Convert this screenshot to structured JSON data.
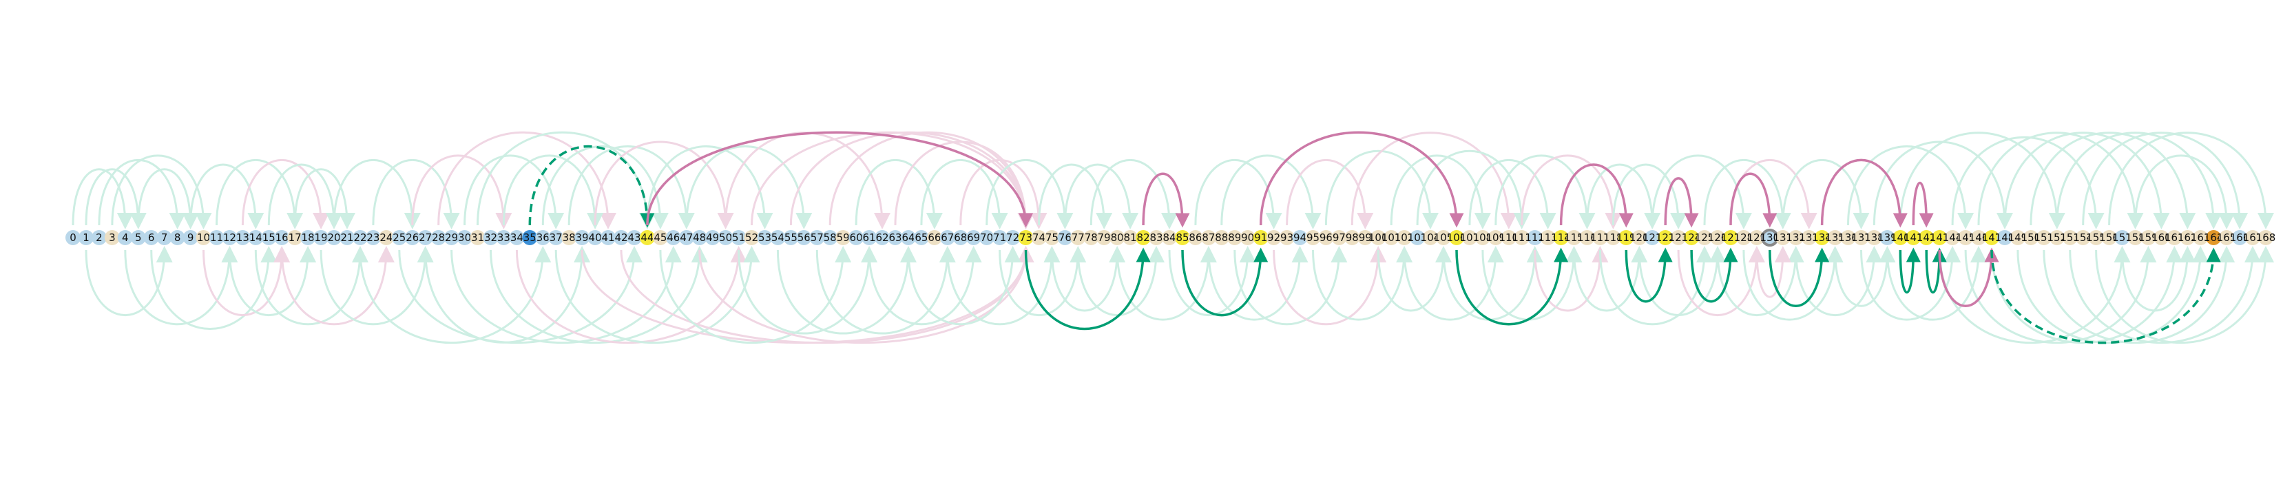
{
  "diagram": {
    "type": "arc-diagram",
    "node_count": 169,
    "labels": [
      "0",
      "1",
      "2",
      "3",
      "4",
      "5",
      "6",
      "7",
      "8",
      "9",
      "10",
      "11",
      "12",
      "13",
      "14",
      "15",
      "16",
      "17",
      "18",
      "19",
      "20",
      "21",
      "22",
      "23",
      "24",
      "25",
      "26",
      "27",
      "28",
      "29",
      "30",
      "31",
      "32",
      "33",
      "34",
      "35",
      "36",
      "37",
      "38",
      "39",
      "40",
      "41",
      "42",
      "43",
      "44",
      "45",
      "46",
      "47",
      "48",
      "49",
      "50",
      "51",
      "52",
      "53",
      "54",
      "55",
      "56",
      "57",
      "58",
      "59",
      "60",
      "61",
      "62",
      "63",
      "64",
      "65",
      "66",
      "67",
      "68",
      "69",
      "70",
      "71",
      "72",
      "73",
      "74",
      "75",
      "76",
      "77",
      "78",
      "79",
      "80",
      "81",
      "82",
      "83",
      "84",
      "85",
      "86",
      "87",
      "88",
      "89",
      "90",
      "91",
      "92",
      "93",
      "94",
      "95",
      "96",
      "97",
      "98",
      "99",
      "100",
      "101",
      "102",
      "103",
      "104",
      "105",
      "106",
      "107",
      "108",
      "109",
      "110",
      "111",
      "112",
      "113",
      "114",
      "115",
      "116",
      "117",
      "118",
      "119",
      "120",
      "121",
      "122",
      "123",
      "124",
      "125",
      "126",
      "127",
      "128",
      "129",
      "130",
      "131",
      "132",
      "133",
      "134",
      "135",
      "136",
      "137",
      "138",
      "139",
      "140",
      "141",
      "142",
      "143",
      "144",
      "145",
      "146",
      "147",
      "148",
      "149",
      "150",
      "151",
      "152",
      "153",
      "154",
      "155",
      "156",
      "157",
      "158",
      "159",
      "160",
      "161",
      "162",
      "163",
      "164",
      "165",
      "166",
      "167",
      "168"
    ],
    "colors": {
      "node_blue": "#b9d7ea",
      "node_beige": "#ede0c4",
      "node_yellow": "#f5ea3a",
      "node_highlight_blue": "#3b8fd6",
      "node_orange": "#e2982a",
      "ring_gray": "#8a8a8a",
      "green_faint": "#cdeee3",
      "pink_faint": "#f0d6e3",
      "green_strong": "#009e73",
      "pink_strong": "#cc79a7"
    },
    "nodes": {
      "yellow": [
        44,
        73,
        82,
        85,
        91,
        106,
        114,
        119,
        122,
        124,
        127,
        134,
        140,
        141,
        142,
        143,
        147
      ],
      "highlight_blue": [
        35
      ],
      "orange": [
        164
      ],
      "ring": [
        130
      ]
    },
    "strong_edges": [
      {
        "from": 35,
        "to": 44,
        "color": "green",
        "side": "up",
        "dashed": true
      },
      {
        "from": 44,
        "to": 73,
        "color": "pink",
        "side": "up",
        "dashed": false
      },
      {
        "from": 82,
        "to": 85,
        "color": "pink",
        "side": "up",
        "dashed": false
      },
      {
        "from": 91,
        "to": 106,
        "color": "pink",
        "side": "up",
        "dashed": false
      },
      {
        "from": 114,
        "to": 119,
        "color": "pink",
        "side": "up",
        "dashed": false
      },
      {
        "from": 122,
        "to": 124,
        "color": "pink",
        "side": "up",
        "dashed": false
      },
      {
        "from": 127,
        "to": 130,
        "color": "pink",
        "side": "up",
        "dashed": false
      },
      {
        "from": 134,
        "to": 140,
        "color": "pink",
        "side": "up",
        "dashed": false
      },
      {
        "from": 141,
        "to": 142,
        "color": "pink",
        "side": "up",
        "dashed": false
      },
      {
        "from": 73,
        "to": 82,
        "color": "green",
        "side": "down",
        "dashed": false
      },
      {
        "from": 85,
        "to": 91,
        "color": "green",
        "side": "down",
        "dashed": false
      },
      {
        "from": 106,
        "to": 114,
        "color": "green",
        "side": "down",
        "dashed": false
      },
      {
        "from": 119,
        "to": 122,
        "color": "green",
        "side": "down",
        "dashed": false
      },
      {
        "from": 124,
        "to": 127,
        "color": "green",
        "side": "down",
        "dashed": false
      },
      {
        "from": 130,
        "to": 134,
        "color": "green",
        "side": "down",
        "dashed": false
      },
      {
        "from": 140,
        "to": 141,
        "color": "green",
        "side": "down",
        "dashed": false
      },
      {
        "from": 142,
        "to": 143,
        "color": "green",
        "side": "down",
        "dashed": false
      },
      {
        "from": 143,
        "to": 147,
        "color": "pink",
        "side": "down",
        "dashed": false
      },
      {
        "from": 147,
        "to": 164,
        "color": "green",
        "side": "down",
        "dashed": true
      }
    ],
    "faint_edges": [
      {
        "from": 0,
        "to": 4,
        "color": "green",
        "side": "up"
      },
      {
        "from": 1,
        "to": 5,
        "color": "green",
        "side": "up"
      },
      {
        "from": 2,
        "to": 8,
        "color": "green",
        "side": "up"
      },
      {
        "from": 3,
        "to": 10,
        "color": "green",
        "side": "up"
      },
      {
        "from": 5,
        "to": 9,
        "color": "green",
        "side": "up"
      },
      {
        "from": 9,
        "to": 14,
        "color": "green",
        "side": "up"
      },
      {
        "from": 11,
        "to": 17,
        "color": "green",
        "side": "up"
      },
      {
        "from": 13,
        "to": 19,
        "color": "pink",
        "side": "up"
      },
      {
        "from": 15,
        "to": 20,
        "color": "green",
        "side": "up"
      },
      {
        "from": 17,
        "to": 21,
        "color": "green",
        "side": "up"
      },
      {
        "from": 20,
        "to": 26,
        "color": "green",
        "side": "up"
      },
      {
        "from": 23,
        "to": 29,
        "color": "green",
        "side": "up"
      },
      {
        "from": 26,
        "to": 33,
        "color": "pink",
        "side": "up"
      },
      {
        "from": 28,
        "to": 41,
        "color": "pink",
        "side": "up"
      },
      {
        "from": 30,
        "to": 37,
        "color": "green",
        "side": "up"
      },
      {
        "from": 31,
        "to": 44,
        "color": "green",
        "side": "up"
      },
      {
        "from": 33,
        "to": 40,
        "color": "green",
        "side": "up"
      },
      {
        "from": 36,
        "to": 45,
        "color": "green",
        "side": "up"
      },
      {
        "from": 38,
        "to": 47,
        "color": "green",
        "side": "up"
      },
      {
        "from": 40,
        "to": 50,
        "color": "pink",
        "side": "up"
      },
      {
        "from": 44,
        "to": 53,
        "color": "green",
        "side": "up"
      },
      {
        "from": 47,
        "to": 56,
        "color": "green",
        "side": "up"
      },
      {
        "from": 50,
        "to": 62,
        "color": "pink",
        "side": "up"
      },
      {
        "from": 52,
        "to": 73,
        "color": "pink",
        "side": "up"
      },
      {
        "from": 55,
        "to": 73,
        "color": "pink",
        "side": "up"
      },
      {
        "from": 58,
        "to": 73,
        "color": "pink",
        "side": "up"
      },
      {
        "from": 60,
        "to": 66,
        "color": "green",
        "side": "up"
      },
      {
        "from": 63,
        "to": 73,
        "color": "pink",
        "side": "up"
      },
      {
        "from": 65,
        "to": 71,
        "color": "green",
        "side": "up"
      },
      {
        "from": 68,
        "to": 74,
        "color": "pink",
        "side": "up"
      },
      {
        "from": 70,
        "to": 76,
        "color": "green",
        "side": "up"
      },
      {
        "from": 74,
        "to": 79,
        "color": "green",
        "side": "up"
      },
      {
        "from": 76,
        "to": 81,
        "color": "green",
        "side": "up"
      },
      {
        "from": 78,
        "to": 84,
        "color": "green",
        "side": "up"
      },
      {
        "from": 86,
        "to": 92,
        "color": "green",
        "side": "up"
      },
      {
        "from": 88,
        "to": 95,
        "color": "green",
        "side": "up"
      },
      {
        "from": 93,
        "to": 99,
        "color": "pink",
        "side": "up"
      },
      {
        "from": 96,
        "to": 104,
        "color": "green",
        "side": "up"
      },
      {
        "from": 98,
        "to": 110,
        "color": "pink",
        "side": "up"
      },
      {
        "from": 101,
        "to": 108,
        "color": "green",
        "side": "up"
      },
      {
        "from": 103,
        "to": 111,
        "color": "green",
        "side": "up"
      },
      {
        "from": 107,
        "to": 113,
        "color": "green",
        "side": "up"
      },
      {
        "from": 109,
        "to": 116,
        "color": "green",
        "side": "up"
      },
      {
        "from": 111,
        "to": 118,
        "color": "pink",
        "side": "up"
      },
      {
        "from": 116,
        "to": 121,
        "color": "green",
        "side": "up"
      },
      {
        "from": 118,
        "to": 123,
        "color": "green",
        "side": "up"
      },
      {
        "from": 121,
        "to": 128,
        "color": "green",
        "side": "up"
      },
      {
        "from": 125,
        "to": 131,
        "color": "green",
        "side": "up"
      },
      {
        "from": 127,
        "to": 133,
        "color": "pink",
        "side": "up"
      },
      {
        "from": 131,
        "to": 137,
        "color": "green",
        "side": "up"
      },
      {
        "from": 136,
        "to": 145,
        "color": "green",
        "side": "up"
      },
      {
        "from": 138,
        "to": 148,
        "color": "green",
        "side": "up"
      },
      {
        "from": 140,
        "to": 152,
        "color": "green",
        "side": "up"
      },
      {
        "from": 144,
        "to": 155,
        "color": "green",
        "side": "up"
      },
      {
        "from": 146,
        "to": 158,
        "color": "green",
        "side": "up"
      },
      {
        "from": 148,
        "to": 160,
        "color": "green",
        "side": "up"
      },
      {
        "from": 150,
        "to": 162,
        "color": "green",
        "side": "up"
      },
      {
        "from": 152,
        "to": 164,
        "color": "green",
        "side": "up"
      },
      {
        "from": 154,
        "to": 166,
        "color": "green",
        "side": "up"
      },
      {
        "from": 156,
        "to": 168,
        "color": "green",
        "side": "up"
      },
      {
        "from": 158,
        "to": 165,
        "color": "green",
        "side": "up"
      },
      {
        "from": 1,
        "to": 7,
        "color": "green",
        "side": "down"
      },
      {
        "from": 4,
        "to": 12,
        "color": "green",
        "side": "down"
      },
      {
        "from": 6,
        "to": 15,
        "color": "green",
        "side": "down"
      },
      {
        "from": 10,
        "to": 16,
        "color": "pink",
        "side": "down"
      },
      {
        "from": 12,
        "to": 18,
        "color": "green",
        "side": "down"
      },
      {
        "from": 14,
        "to": 22,
        "color": "green",
        "side": "down"
      },
      {
        "from": 16,
        "to": 24,
        "color": "pink",
        "side": "down"
      },
      {
        "from": 19,
        "to": 27,
        "color": "green",
        "side": "down"
      },
      {
        "from": 22,
        "to": 36,
        "color": "green",
        "side": "down"
      },
      {
        "from": 25,
        "to": 43,
        "color": "green",
        "side": "down"
      },
      {
        "from": 27,
        "to": 39,
        "color": "green",
        "side": "down"
      },
      {
        "from": 29,
        "to": 46,
        "color": "green",
        "side": "down"
      },
      {
        "from": 32,
        "to": 48,
        "color": "green",
        "side": "down"
      },
      {
        "from": 34,
        "to": 51,
        "color": "pink",
        "side": "down"
      },
      {
        "from": 37,
        "to": 52,
        "color": "green",
        "side": "down"
      },
      {
        "from": 39,
        "to": 73,
        "color": "pink",
        "side": "down"
      },
      {
        "from": 42,
        "to": 73,
        "color": "pink",
        "side": "down"
      },
      {
        "from": 45,
        "to": 59,
        "color": "green",
        "side": "down"
      },
      {
        "from": 48,
        "to": 73,
        "color": "pink",
        "side": "down"
      },
      {
        "from": 51,
        "to": 61,
        "color": "green",
        "side": "down"
      },
      {
        "from": 54,
        "to": 64,
        "color": "green",
        "side": "down"
      },
      {
        "from": 57,
        "to": 67,
        "color": "green",
        "side": "down"
      },
      {
        "from": 61,
        "to": 69,
        "color": "green",
        "side": "down"
      },
      {
        "from": 64,
        "to": 72,
        "color": "green",
        "side": "down"
      },
      {
        "from": 67,
        "to": 75,
        "color": "green",
        "side": "down"
      },
      {
        "from": 71,
        "to": 77,
        "color": "green",
        "side": "down"
      },
      {
        "from": 75,
        "to": 80,
        "color": "green",
        "side": "down"
      },
      {
        "from": 77,
        "to": 83,
        "color": "green",
        "side": "down"
      },
      {
        "from": 80,
        "to": 87,
        "color": "green",
        "side": "down"
      },
      {
        "from": 84,
        "to": 90,
        "color": "green",
        "side": "down"
      },
      {
        "from": 87,
        "to": 94,
        "color": "green",
        "side": "down"
      },
      {
        "from": 89,
        "to": 97,
        "color": "green",
        "side": "down"
      },
      {
        "from": 92,
        "to": 100,
        "color": "pink",
        "side": "down"
      },
      {
        "from": 95,
        "to": 102,
        "color": "green",
        "side": "down"
      },
      {
        "from": 100,
        "to": 105,
        "color": "green",
        "side": "down"
      },
      {
        "from": 102,
        "to": 109,
        "color": "green",
        "side": "down"
      },
      {
        "from": 105,
        "to": 112,
        "color": "green",
        "side": "down"
      },
      {
        "from": 108,
        "to": 115,
        "color": "green",
        "side": "down"
      },
      {
        "from": 112,
        "to": 117,
        "color": "pink",
        "side": "down"
      },
      {
        "from": 115,
        "to": 120,
        "color": "green",
        "side": "down"
      },
      {
        "from": 117,
        "to": 125,
        "color": "green",
        "side": "down"
      },
      {
        "from": 120,
        "to": 126,
        "color": "green",
        "side": "down"
      },
      {
        "from": 123,
        "to": 129,
        "color": "pink",
        "side": "down"
      },
      {
        "from": 126,
        "to": 132,
        "color": "green",
        "side": "down"
      },
      {
        "from": 128,
        "to": 135,
        "color": "green",
        "side": "down"
      },
      {
        "from": 129,
        "to": 131,
        "color": "pink",
        "side": "down"
      },
      {
        "from": 132,
        "to": 138,
        "color": "green",
        "side": "down"
      },
      {
        "from": 135,
        "to": 139,
        "color": "green",
        "side": "down"
      },
      {
        "from": 137,
        "to": 144,
        "color": "green",
        "side": "down"
      },
      {
        "from": 139,
        "to": 146,
        "color": "green",
        "side": "down"
      },
      {
        "from": 143,
        "to": 157,
        "color": "green",
        "side": "down"
      },
      {
        "from": 145,
        "to": 159,
        "color": "green",
        "side": "down"
      },
      {
        "from": 147,
        "to": 161,
        "color": "green",
        "side": "down"
      },
      {
        "from": 149,
        "to": 163,
        "color": "green",
        "side": "down"
      },
      {
        "from": 151,
        "to": 165,
        "color": "green",
        "side": "down"
      },
      {
        "from": 153,
        "to": 167,
        "color": "green",
        "side": "down"
      },
      {
        "from": 155,
        "to": 168,
        "color": "green",
        "side": "down"
      },
      {
        "from": 157,
        "to": 162,
        "color": "green",
        "side": "down"
      }
    ]
  }
}
